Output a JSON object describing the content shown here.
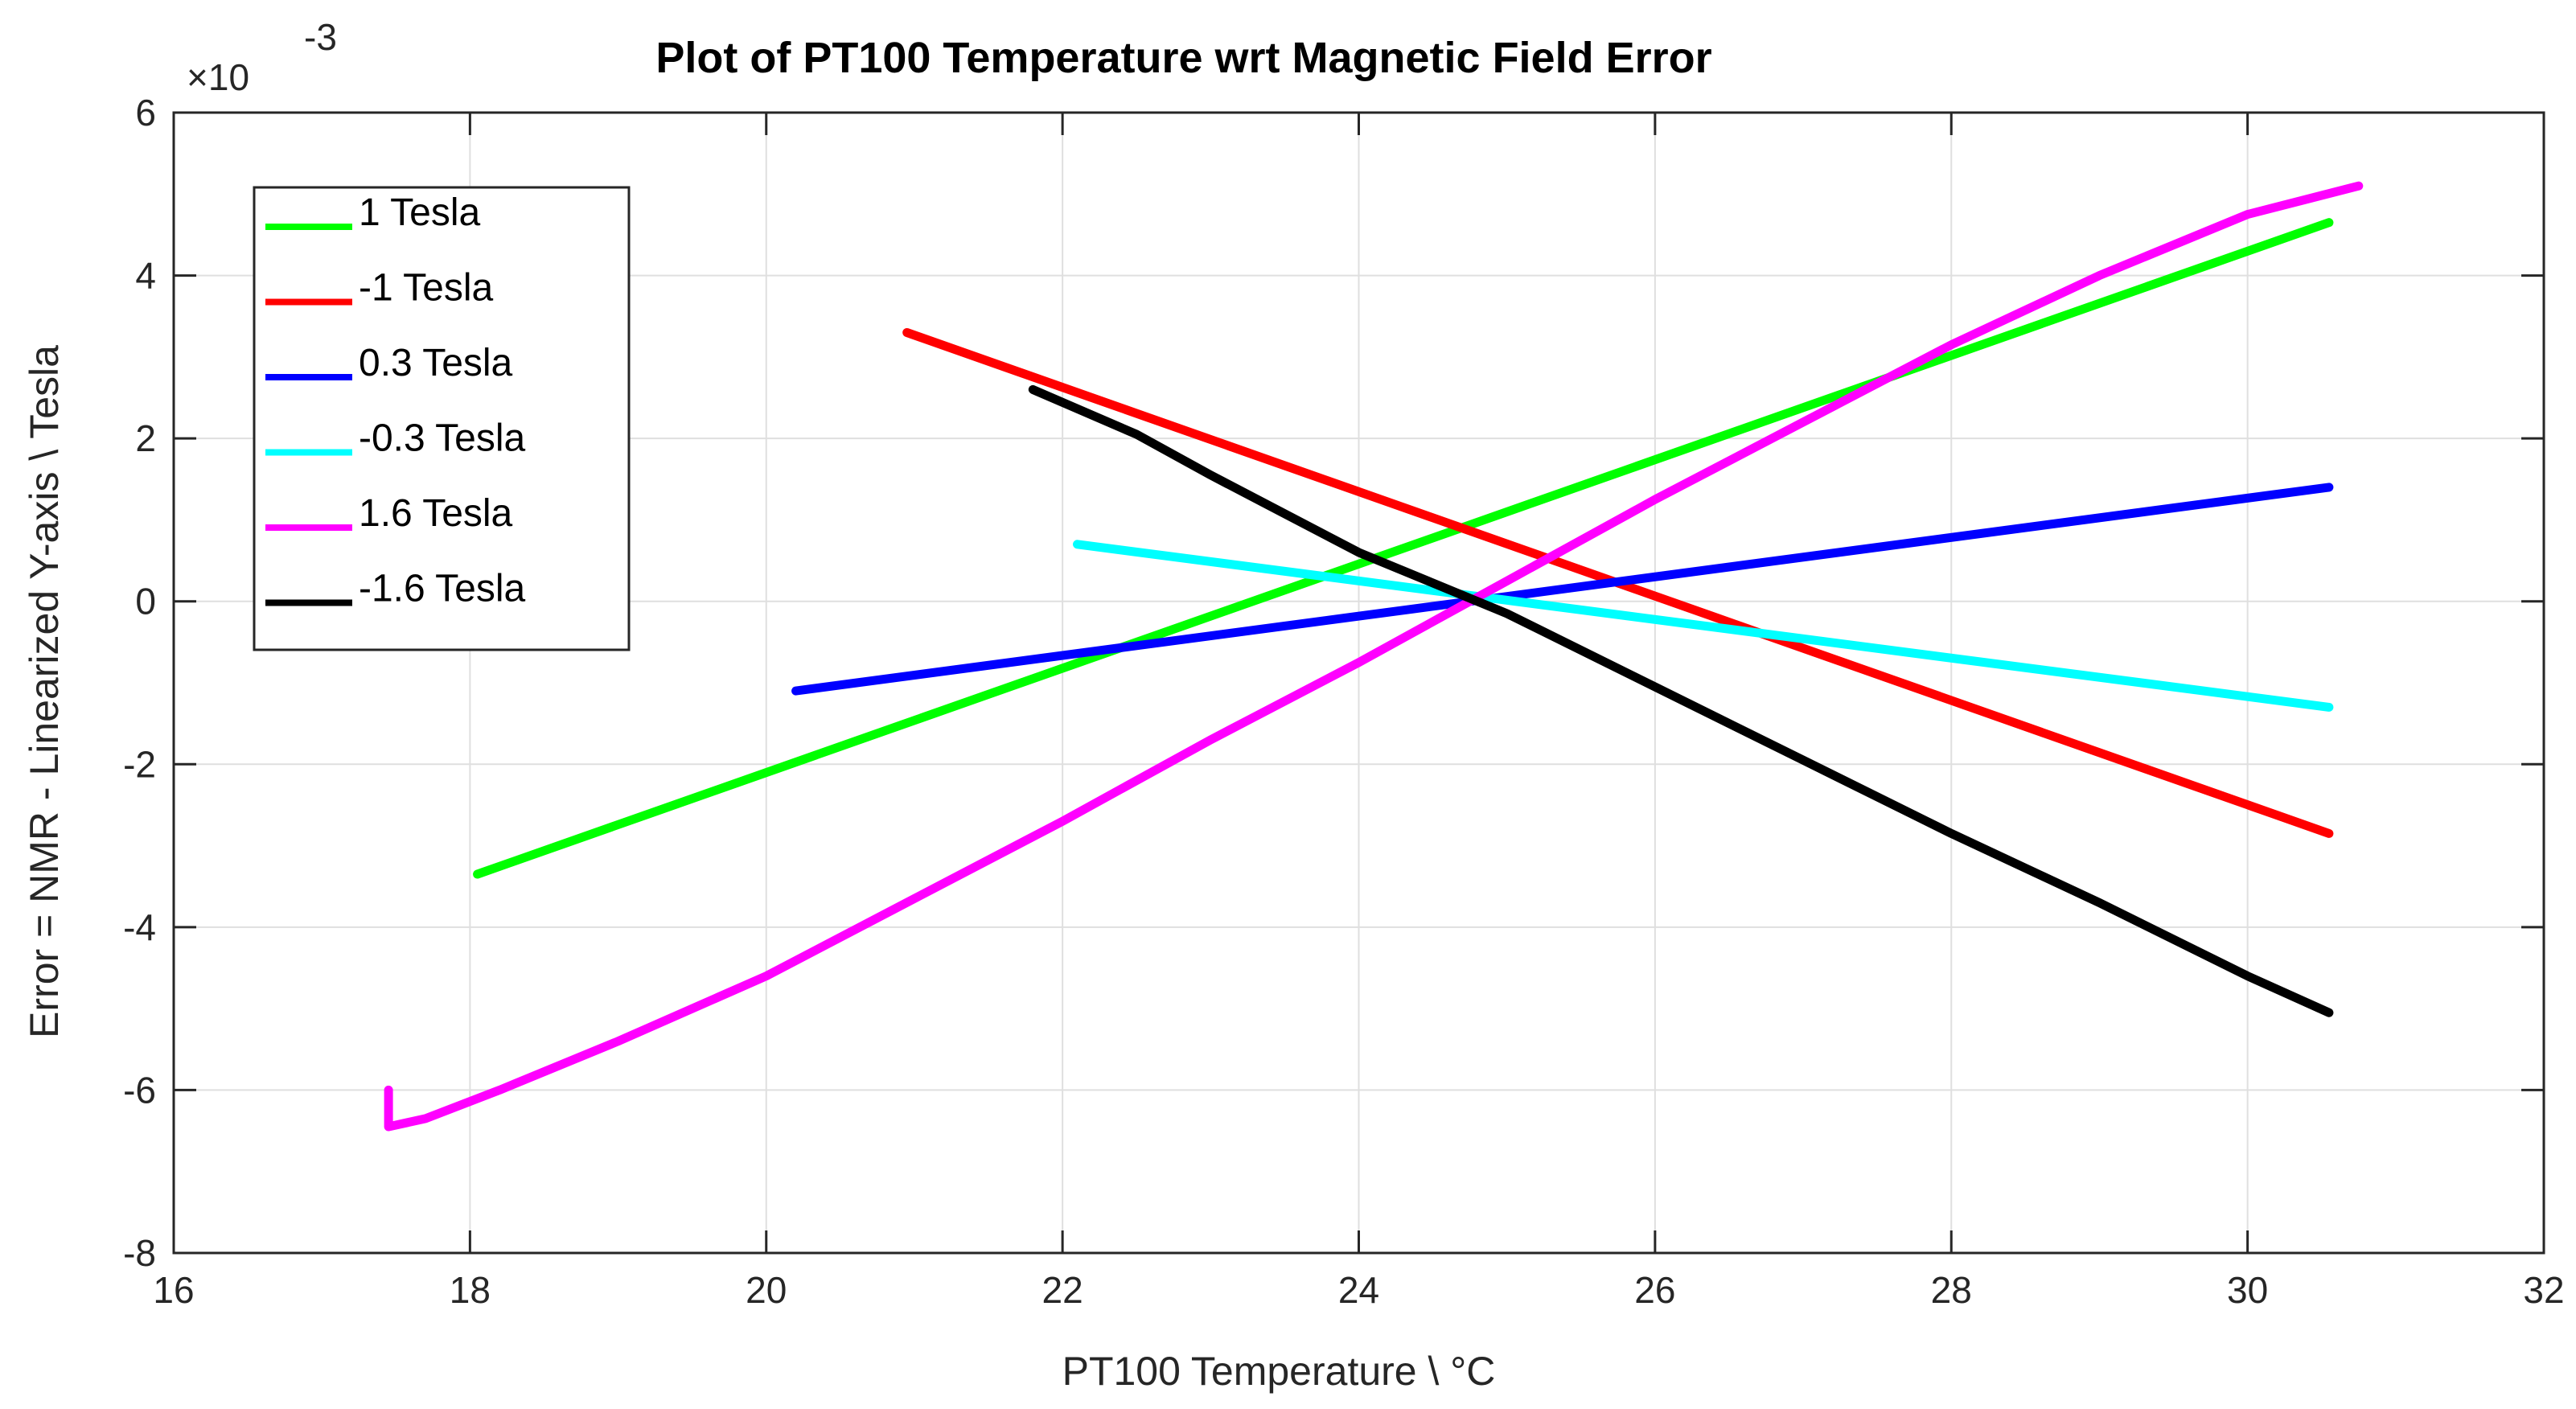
{
  "chart_data": {
    "type": "line",
    "title": "Plot of PT100 Temperature wrt Magnetic Field Error",
    "xlabel": "PT100 Temperature \\ °C",
    "ylabel": "Error = NMR - Linearized Y-axis \\ Tesla",
    "y_exponent_prefix": "×10",
    "y_exponent_power": "-3",
    "xlim": [
      16,
      32
    ],
    "ylim": [
      -8,
      6
    ],
    "x_ticks": [
      16,
      18,
      20,
      22,
      24,
      26,
      28,
      30,
      32
    ],
    "x_tick_labels": [
      "16",
      "18",
      "20",
      "22",
      "24",
      "26",
      "28",
      "30",
      "32"
    ],
    "y_ticks": [
      -8,
      -6,
      -4,
      -2,
      0,
      2,
      4,
      6
    ],
    "y_tick_labels": [
      "-8",
      "-6",
      "-4",
      "-2",
      "0",
      "2",
      "4",
      "6"
    ],
    "grid": true,
    "legend_position": "top-left",
    "series": [
      {
        "name": "1 Tesla",
        "color": "#00ff00",
        "x": [
          18.05,
          30.55
        ],
        "y": [
          -3.35,
          4.65
        ]
      },
      {
        "name": "-1 Tesla",
        "color": "#ff0000",
        "x": [
          20.95,
          30.55
        ],
        "y": [
          3.3,
          -2.85
        ]
      },
      {
        "name": "0.3 Tesla",
        "color": "#0000ff",
        "x": [
          20.2,
          30.55
        ],
        "y": [
          -1.1,
          1.4
        ]
      },
      {
        "name": "-0.3 Tesla",
        "color": "#00ffff",
        "x": [
          22.1,
          30.55
        ],
        "y": [
          0.7,
          -1.3
        ]
      },
      {
        "name": "1.6 Tesla",
        "color": "#ff00ff",
        "x": [
          17.45,
          17.45,
          17.7,
          18.2,
          19.0,
          20.0,
          21.0,
          22.0,
          23.0,
          24.0,
          25.0,
          26.0,
          27.0,
          28.0,
          29.0,
          30.0,
          30.75
        ],
        "y": [
          -6.0,
          -6.45,
          -6.35,
          -6.0,
          -5.4,
          -4.6,
          -3.65,
          -2.7,
          -1.7,
          -0.75,
          0.25,
          1.25,
          2.2,
          3.15,
          4.0,
          4.75,
          5.1
        ]
      },
      {
        "name": "-1.6 Tesla",
        "color": "#000000",
        "x": [
          21.8,
          22.5,
          23.0,
          24.0,
          25.0,
          26.0,
          27.0,
          28.0,
          29.0,
          30.0,
          30.55
        ],
        "y": [
          2.6,
          2.05,
          1.55,
          0.6,
          -0.15,
          -1.05,
          -1.95,
          -2.85,
          -3.7,
          -4.6,
          -5.05
        ]
      }
    ]
  }
}
